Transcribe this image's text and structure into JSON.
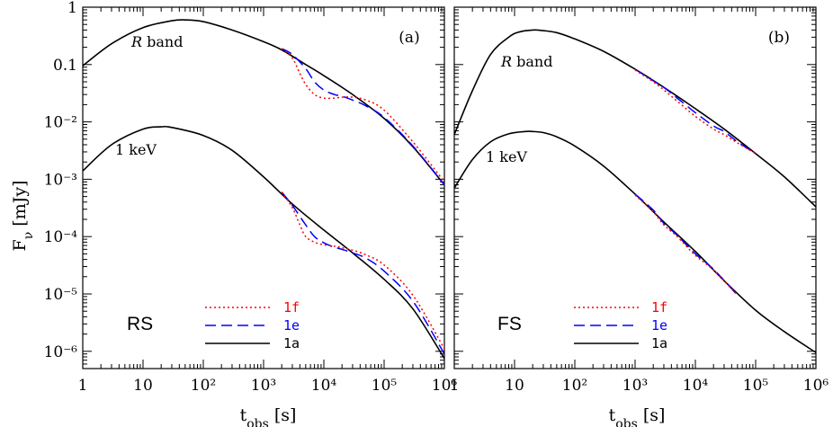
{
  "figure": {
    "ylabel_main": "F",
    "ylabel_sub": "ν",
    "ylabel_unit": "[mJy]",
    "xlabel_main": "t",
    "xlabel_sub": "obs",
    "xlabel_unit": "[s]"
  },
  "chart_data": [
    {
      "type": "line",
      "panel_tag": "(a)",
      "region_label": "RS",
      "x_scale": "log",
      "y_scale": "log",
      "xlim": [
        1,
        1000000
      ],
      "ylim": [
        5e-07,
        1
      ],
      "x_tick_labels": [
        "1",
        "10",
        "10²",
        "10³",
        "10⁴",
        "10⁵",
        "10⁶"
      ],
      "y_tick_labels": [
        "1",
        "0.1",
        "10⁻²",
        "10⁻³",
        "10⁻⁴",
        "10⁻⁵",
        "10⁻⁶"
      ],
      "legend": [
        {
          "label": "1f",
          "color": "#ff0000",
          "style": "dotted"
        },
        {
          "label": "1e",
          "color": "#0000ff",
          "style": "dashed"
        },
        {
          "label": "1a",
          "color": "#000000",
          "style": "solid"
        }
      ],
      "curve_labels": [
        {
          "text_italic": "R",
          "text": " band"
        },
        {
          "text": "1 keV"
        }
      ],
      "series": [
        {
          "name": "1a",
          "group": "R band",
          "color": "#000000",
          "style": "solid",
          "x": [
            1,
            3,
            10,
            30,
            50,
            100,
            300,
            1000,
            2000,
            5000,
            10000,
            30000,
            100000,
            300000,
            1000000
          ],
          "y": [
            0.095,
            0.23,
            0.44,
            0.58,
            0.6,
            0.56,
            0.4,
            0.25,
            0.18,
            0.1,
            0.064,
            0.03,
            0.0115,
            0.0037,
            0.0008
          ]
        },
        {
          "name": "1e",
          "group": "R band",
          "color": "#0000ff",
          "style": "dashed",
          "x": [
            2000,
            3000,
            5000,
            7000,
            10000,
            15000,
            20000,
            30000,
            50000,
            100000,
            300000,
            1000000
          ],
          "y": [
            0.19,
            0.15,
            0.085,
            0.05,
            0.036,
            0.03,
            0.028,
            0.024,
            0.019,
            0.012,
            0.0038,
            0.0008
          ]
        },
        {
          "name": "1f",
          "group": "R band",
          "color": "#ff0000",
          "style": "dotted",
          "x": [
            2000,
            3000,
            4000,
            5000,
            7000,
            10000,
            15000,
            20000,
            30000,
            50000,
            100000,
            300000,
            1000000
          ],
          "y": [
            0.19,
            0.13,
            0.07,
            0.045,
            0.03,
            0.026,
            0.026,
            0.027,
            0.027,
            0.024,
            0.016,
            0.0045,
            0.0009
          ]
        },
        {
          "name": "1a",
          "group": "1 keV",
          "color": "#000000",
          "style": "solid",
          "x": [
            1,
            3,
            10,
            20,
            30,
            100,
            300,
            1000,
            3000,
            10000,
            30000,
            100000,
            300000,
            1000000
          ],
          "y": [
            0.0014,
            0.004,
            0.0075,
            0.0082,
            0.008,
            0.0058,
            0.0032,
            0.0011,
            0.00037,
            0.00013,
            5.2e-05,
            1.8e-05,
            5.5e-06,
            7.5e-07
          ]
        },
        {
          "name": "1e",
          "group": "1 keV",
          "color": "#0000ff",
          "style": "dashed",
          "x": [
            2000,
            3000,
            5000,
            7000,
            10000,
            15000,
            20000,
            30000,
            50000,
            100000,
            300000,
            1000000
          ],
          "y": [
            0.0006,
            0.00035,
            0.00016,
            0.0001,
            7.8e-05,
            6.5e-05,
            6e-05,
            5.2e-05,
            4.2e-05,
            2.5e-05,
            7.5e-06,
            9e-07
          ]
        },
        {
          "name": "1f",
          "group": "1 keV",
          "color": "#ff0000",
          "style": "dotted",
          "x": [
            2000,
            3000,
            4000,
            5000,
            7000,
            10000,
            15000,
            20000,
            30000,
            50000,
            100000,
            300000,
            1000000
          ],
          "y": [
            0.0006,
            0.00032,
            0.00016,
            0.0001,
            8e-05,
            7.2e-05,
            6.8e-05,
            6.4e-05,
            5.8e-05,
            4.8e-05,
            3.2e-05,
            9.5e-06,
            1.1e-06
          ]
        }
      ]
    },
    {
      "type": "line",
      "panel_tag": "(b)",
      "region_label": "FS",
      "x_scale": "log",
      "y_scale": "log",
      "xlim": [
        1,
        1000000
      ],
      "ylim": [
        5e-07,
        1
      ],
      "x_tick_labels": [
        "1",
        "10",
        "10²",
        "10³",
        "10⁴",
        "10⁵",
        "10⁶"
      ],
      "y_tick_labels": [],
      "legend": [
        {
          "label": "1f",
          "color": "#ff0000",
          "style": "dotted"
        },
        {
          "label": "1e",
          "color": "#0000ff",
          "style": "dashed"
        },
        {
          "label": "1a",
          "color": "#000000",
          "style": "solid"
        }
      ],
      "curve_labels": [
        {
          "text_italic": "R",
          "text": " band"
        },
        {
          "text": "1 keV"
        }
      ],
      "series": [
        {
          "name": "1a",
          "group": "R band",
          "color": "#000000",
          "style": "solid",
          "x": [
            1,
            2,
            4,
            8,
            12,
            20,
            30,
            50,
            100,
            300,
            1000,
            3000,
            10000,
            30000,
            100000,
            300000,
            1000000
          ],
          "y": [
            0.006,
            0.035,
            0.15,
            0.3,
            0.37,
            0.4,
            0.39,
            0.36,
            0.28,
            0.17,
            0.083,
            0.04,
            0.017,
            0.0075,
            0.0028,
            0.0011,
            0.00033
          ]
        },
        {
          "name": "1e",
          "group": "R band",
          "color": "#0000ff",
          "style": "dashed",
          "x": [
            1000,
            2000,
            3000,
            5000,
            10000,
            20000,
            30000,
            50000,
            100000
          ],
          "y": [
            0.083,
            0.052,
            0.04,
            0.026,
            0.0145,
            0.0085,
            0.0068,
            0.0045,
            0.0028
          ]
        },
        {
          "name": "1f",
          "group": "R band",
          "color": "#ff0000",
          "style": "dotted",
          "x": [
            1000,
            2000,
            3000,
            5000,
            10000,
            20000,
            30000,
            50000,
            100000
          ],
          "y": [
            0.08,
            0.05,
            0.036,
            0.023,
            0.0125,
            0.0075,
            0.006,
            0.0043,
            0.0028
          ]
        },
        {
          "name": "1a",
          "group": "1 keV",
          "color": "#000000",
          "style": "solid",
          "x": [
            1,
            2,
            4,
            8,
            15,
            20,
            30,
            50,
            100,
            300,
            1000,
            3000,
            10000,
            30000,
            100000,
            300000,
            1000000
          ],
          "y": [
            0.0007,
            0.0022,
            0.0045,
            0.0062,
            0.0068,
            0.0068,
            0.0065,
            0.0055,
            0.0038,
            0.0017,
            0.00055,
            0.00018,
            5.5e-05,
            1.7e-05,
            5.2e-06,
            2.2e-06,
            9.5e-07
          ]
        },
        {
          "name": "1e",
          "group": "1 keV",
          "color": "#0000ff",
          "style": "dashed",
          "x": [
            1000,
            2000,
            3000,
            5000,
            10000,
            20000,
            50000
          ],
          "y": [
            0.00055,
            0.00029,
            0.00017,
            0.000105,
            5e-05,
            2.7e-05,
            9.5e-06
          ]
        },
        {
          "name": "1f",
          "group": "1 keV",
          "color": "#ff0000",
          "style": "dotted",
          "x": [
            1000,
            2000,
            3000,
            5000,
            10000,
            20000,
            50000
          ],
          "y": [
            0.00053,
            0.00027,
            0.00016,
            0.0001,
            4.7e-05,
            2.6e-05,
            9.5e-06
          ]
        }
      ]
    }
  ]
}
